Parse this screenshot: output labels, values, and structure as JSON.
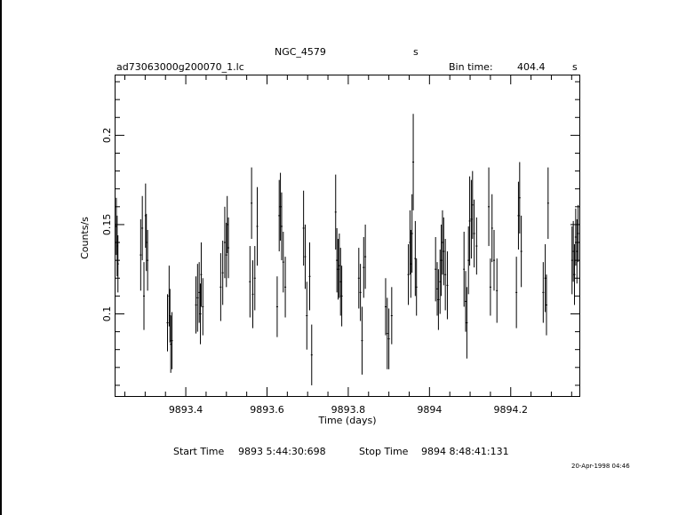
{
  "header": {
    "object_name": "NGC_4579",
    "object_unit": "s",
    "file_name": "ad73063000g200070_1.lc",
    "bin_label": "Bin time:",
    "bin_value": "404.4",
    "bin_unit": "s"
  },
  "footer": {
    "start_label": "Start Time",
    "start_value": "9893  5:44:30:698",
    "stop_label": "Stop Time",
    "stop_value": "9894  8:48:41:131",
    "timestamp": "20-Apr-1998 04:46"
  },
  "chart_data": {
    "type": "scatter",
    "xlabel": "Time (days)",
    "ylabel": "Counts/s",
    "xlim": [
      9893.227,
      9894.369
    ],
    "ylim": [
      0.054,
      0.2335
    ],
    "x_ticks": [
      9893.4,
      9893.6,
      9893.8,
      9894,
      9894.2
    ],
    "x_tick_labels": [
      "9893.4",
      "9893.6",
      "9893.8",
      "9894",
      "9894.2"
    ],
    "y_ticks": [
      0.1,
      0.15,
      0.2
    ],
    "y_tick_labels": [
      "0.1",
      "0.15",
      "0.2"
    ],
    "error_bars": "vertical",
    "points": [
      [
        9893.229,
        0.149,
        0.016
      ],
      [
        9893.231,
        0.138,
        0.017
      ],
      [
        9893.233,
        0.128,
        0.016
      ],
      [
        9893.289,
        0.133,
        0.02
      ],
      [
        9893.293,
        0.148,
        0.018
      ],
      [
        9893.297,
        0.11,
        0.019
      ],
      [
        9893.301,
        0.155,
        0.018
      ],
      [
        9893.303,
        0.14,
        0.016
      ],
      [
        9893.306,
        0.13,
        0.017
      ],
      [
        9893.355,
        0.095,
        0.016
      ],
      [
        9893.359,
        0.11,
        0.017
      ],
      [
        9893.361,
        0.099,
        0.015
      ],
      [
        9893.363,
        0.083,
        0.016
      ],
      [
        9893.366,
        0.085,
        0.016
      ],
      [
        9893.425,
        0.105,
        0.016
      ],
      [
        9893.429,
        0.109,
        0.019
      ],
      [
        9893.433,
        0.112,
        0.017
      ],
      [
        9893.436,
        0.1,
        0.017
      ],
      [
        9893.438,
        0.122,
        0.018
      ],
      [
        9893.442,
        0.104,
        0.016
      ],
      [
        9893.486,
        0.115,
        0.019
      ],
      [
        9893.491,
        0.123,
        0.018
      ],
      [
        9893.496,
        0.14,
        0.02
      ],
      [
        9893.5,
        0.133,
        0.018
      ],
      [
        9893.502,
        0.15,
        0.016
      ],
      [
        9893.505,
        0.137,
        0.017
      ],
      [
        9893.558,
        0.118,
        0.02
      ],
      [
        9893.562,
        0.162,
        0.02
      ],
      [
        9893.565,
        0.111,
        0.019
      ],
      [
        9893.57,
        0.12,
        0.018
      ],
      [
        9893.576,
        0.149,
        0.022
      ],
      [
        9893.625,
        0.104,
        0.017
      ],
      [
        9893.63,
        0.155,
        0.02
      ],
      [
        9893.633,
        0.16,
        0.019
      ],
      [
        9893.636,
        0.149,
        0.019
      ],
      [
        9893.64,
        0.129,
        0.017
      ],
      [
        9893.645,
        0.115,
        0.017
      ],
      [
        9893.69,
        0.148,
        0.021
      ],
      [
        9893.694,
        0.132,
        0.018
      ],
      [
        9893.698,
        0.099,
        0.019
      ],
      [
        9893.705,
        0.121,
        0.019
      ],
      [
        9893.71,
        0.077,
        0.017
      ],
      [
        9893.769,
        0.157,
        0.021
      ],
      [
        9893.772,
        0.13,
        0.018
      ],
      [
        9893.775,
        0.125,
        0.017
      ],
      [
        9893.778,
        0.127,
        0.018
      ],
      [
        9893.781,
        0.118,
        0.019
      ],
      [
        9893.784,
        0.11,
        0.017
      ],
      [
        9893.826,
        0.12,
        0.017
      ],
      [
        9893.83,
        0.112,
        0.016
      ],
      [
        9893.834,
        0.085,
        0.019
      ],
      [
        9893.838,
        0.126,
        0.017
      ],
      [
        9893.842,
        0.132,
        0.018
      ],
      [
        9893.892,
        0.104,
        0.016
      ],
      [
        9893.896,
        0.089,
        0.02
      ],
      [
        9893.9,
        0.086,
        0.017
      ],
      [
        9893.907,
        0.099,
        0.016
      ],
      [
        9893.948,
        0.122,
        0.017
      ],
      [
        9893.952,
        0.14,
        0.018
      ],
      [
        9893.954,
        0.128,
        0.019
      ],
      [
        9893.957,
        0.145,
        0.022
      ],
      [
        9893.96,
        0.185,
        0.027
      ],
      [
        9893.965,
        0.131,
        0.021
      ],
      [
        9893.968,
        0.115,
        0.016
      ],
      [
        9894.015,
        0.125,
        0.018
      ],
      [
        9894.019,
        0.114,
        0.015
      ],
      [
        9894.022,
        0.108,
        0.017
      ],
      [
        9894.026,
        0.118,
        0.018
      ],
      [
        9894.029,
        0.13,
        0.02
      ],
      [
        9894.032,
        0.14,
        0.018
      ],
      [
        9894.035,
        0.135,
        0.019
      ],
      [
        9894.039,
        0.122,
        0.02
      ],
      [
        9894.044,
        0.116,
        0.019
      ],
      [
        9894.085,
        0.125,
        0.021
      ],
      [
        9894.089,
        0.107,
        0.017
      ],
      [
        9894.092,
        0.095,
        0.02
      ],
      [
        9894.096,
        0.13,
        0.019
      ],
      [
        9894.099,
        0.152,
        0.025
      ],
      [
        9894.103,
        0.153,
        0.022
      ],
      [
        9894.106,
        0.161,
        0.019
      ],
      [
        9894.11,
        0.145,
        0.019
      ],
      [
        9894.116,
        0.138,
        0.016
      ],
      [
        9894.146,
        0.16,
        0.022
      ],
      [
        9894.15,
        0.115,
        0.016
      ],
      [
        9894.154,
        0.148,
        0.019
      ],
      [
        9894.159,
        0.13,
        0.017
      ],
      [
        9894.166,
        0.113,
        0.018
      ],
      [
        9894.214,
        0.112,
        0.02
      ],
      [
        9894.219,
        0.155,
        0.019
      ],
      [
        9894.222,
        0.165,
        0.02
      ],
      [
        9894.226,
        0.135,
        0.02
      ],
      [
        9894.28,
        0.112,
        0.017
      ],
      [
        9894.285,
        0.12,
        0.019
      ],
      [
        9894.288,
        0.105,
        0.017
      ],
      [
        9894.292,
        0.162,
        0.02
      ],
      [
        9894.351,
        0.13,
        0.019
      ],
      [
        9894.354,
        0.135,
        0.017
      ],
      [
        9894.357,
        0.122,
        0.017
      ],
      [
        9894.36,
        0.143,
        0.016
      ],
      [
        9894.363,
        0.135,
        0.018
      ],
      [
        9894.366,
        0.145,
        0.016
      ]
    ]
  }
}
